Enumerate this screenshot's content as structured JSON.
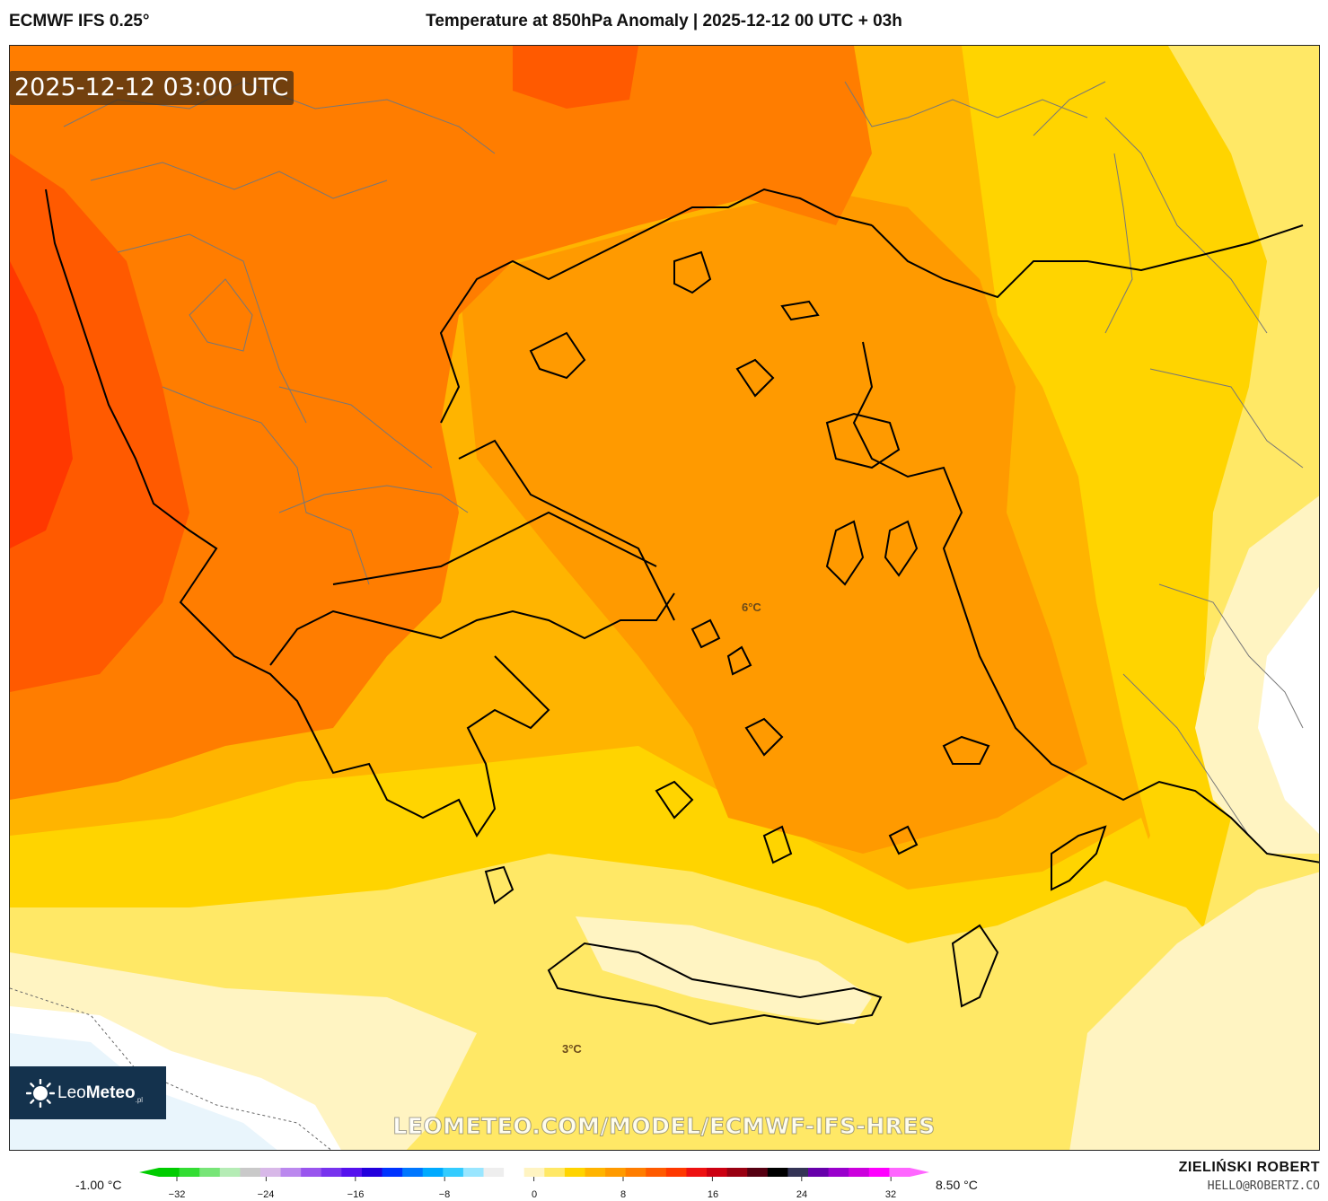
{
  "header": {
    "model": "ECMWF IFS 0.25°",
    "title": "Temperature at 850hPa Anomaly | 2025-12-12 00 UTC + 03h"
  },
  "map": {
    "valid_time": "2025-12-12 03:00 UTC",
    "watermark": "LEOMETEO.COM/MODEL/ECMWF-IFS-HRES",
    "contour_labels": [
      {
        "text": "6°C"
      },
      {
        "text": "3°C"
      }
    ],
    "colors": {
      "white": "#ffffff",
      "pale_blue": "#e9f5fc",
      "pale_yellow": "#fff4c2",
      "light_yellow": "#ffe866",
      "yellow": "#ffd400",
      "orange_yellow": "#ffb400",
      "orange": "#ff9a00",
      "dark_orange": "#ff7d00",
      "red_orange": "#ff5a00",
      "red": "#ff3800",
      "coastline": "#000000",
      "borders": "#777777"
    }
  },
  "logo": {
    "brand_light": "Leo",
    "brand_bold": "Meteo",
    "suffix": ".pl"
  },
  "legend": {
    "min_label": "-1.00 °C",
    "max_label": "8.50 °C",
    "ticks": [
      "−32",
      "−24",
      "−16",
      "−8",
      "0",
      "8",
      "16",
      "24",
      "32"
    ],
    "colors": [
      "#00cc00",
      "#33dd33",
      "#77e577",
      "#b5ecb5",
      "#c9c9c9",
      "#d8b8e8",
      "#bb88ee",
      "#9955ee",
      "#7733ee",
      "#5511ee",
      "#2200dd",
      "#0033ff",
      "#0077ff",
      "#00aaff",
      "#33ccff",
      "#99e6ff",
      "#eeeeee",
      "#ffffff",
      "#fff4c2",
      "#ffe866",
      "#ffd400",
      "#ffb400",
      "#ff9a00",
      "#ff7d00",
      "#ff5a00",
      "#ff3800",
      "#ee1111",
      "#cc0011",
      "#990011",
      "#550011",
      "#000000",
      "#333355",
      "#6600aa",
      "#9900cc",
      "#cc00dd",
      "#ff00ff",
      "#ff66ff"
    ]
  },
  "author": {
    "name": "ZIELIŃSKI ROBERT",
    "email": "HELLO@ROBERTZ.CO"
  }
}
